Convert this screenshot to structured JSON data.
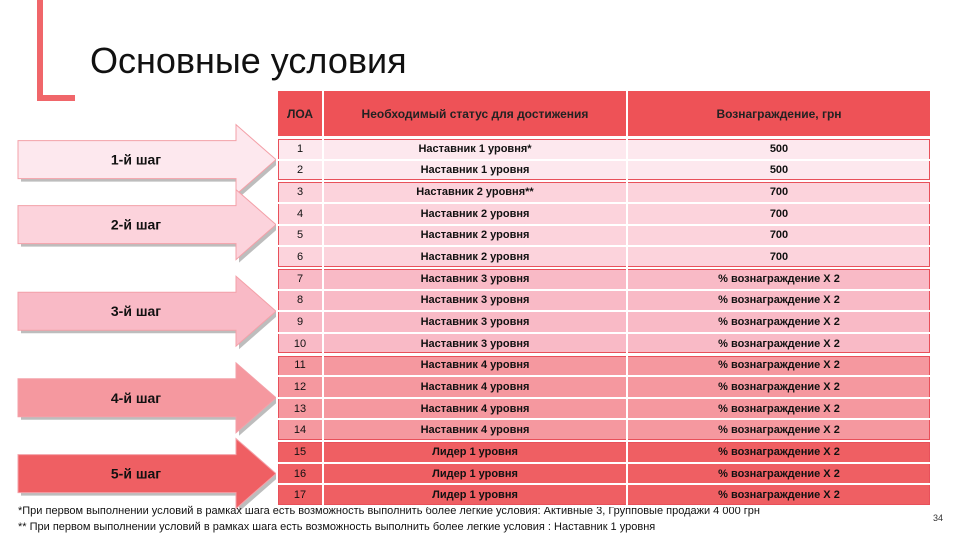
{
  "title": "Основные условия",
  "table": {
    "header": [
      "ЛОА",
      "Необходимый статус для достижения",
      "Вознаграждение, грн"
    ],
    "groups": [
      {
        "step": "1-й шаг",
        "rows": [
          [
            "1",
            "Наставник 1 уровня*",
            "500"
          ],
          [
            "2",
            "Наставник 1 уровня",
            "500"
          ]
        ]
      },
      {
        "step": "2-й шаг",
        "rows": [
          [
            "3",
            "Наставник 2 уровня**",
            "700"
          ],
          [
            "4",
            "Наставник 2 уровня",
            "700"
          ],
          [
            "5",
            "Наставник 2 уровня",
            "700"
          ],
          [
            "6",
            "Наставник 2 уровня",
            "700"
          ]
        ]
      },
      {
        "step": "3-й шаг",
        "rows": [
          [
            "7",
            "Наставник 3 уровня",
            "% вознаграждение Х 2"
          ],
          [
            "8",
            "Наставник 3 уровня",
            "% вознаграждение Х 2"
          ],
          [
            "9",
            "Наставник 3 уровня",
            "% вознаграждение Х 2"
          ],
          [
            "10",
            "Наставник 3 уровня",
            "% вознаграждение Х 2"
          ]
        ]
      },
      {
        "step": "4-й шаг",
        "rows": [
          [
            "11",
            "Наставник 4 уровня",
            "% вознаграждение Х 2"
          ],
          [
            "12",
            "Наставник 4 уровня",
            "% вознаграждение Х 2"
          ],
          [
            "13",
            "Наставник 4 уровня",
            "% вознаграждение Х 2"
          ],
          [
            "14",
            "Наставник 4 уровня",
            "% вознаграждение Х 2"
          ]
        ]
      },
      {
        "step": "5-й шаг",
        "rows": [
          [
            "15",
            "Лидер 1 уровня",
            "% вознаграждение Х 2"
          ],
          [
            "16",
            "Лидер 1 уровня",
            "% вознаграждение Х 2"
          ],
          [
            "17",
            "Лидер 1 уровня",
            "% вознаграждение Х 2"
          ]
        ]
      }
    ]
  },
  "footnotes": [
    "*При первом выполнении условий в рамках шага есть возможность выполнить более легкие условия: Активные 3, Групповые продажи 4 000 грн",
    "** При первом выполнении условий в рамках шага есть возможность выполнить более легкие условия : Наставник 1 уровня"
  ],
  "page_number": "34"
}
